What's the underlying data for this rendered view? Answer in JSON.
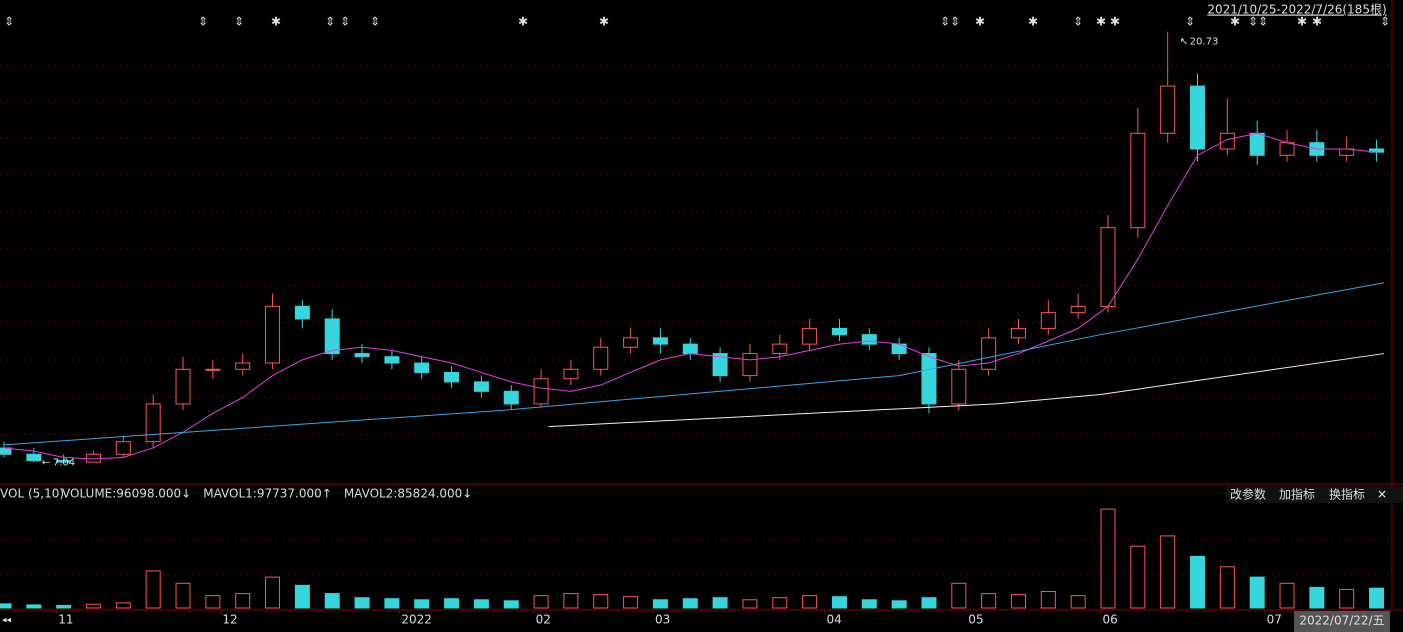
{
  "chart_data": {
    "type": "candlestick",
    "title": "2021/10/25-2022/7/26(185根)",
    "xlim": [
      0,
      185
    ],
    "x": [
      0,
      4,
      8,
      12,
      16,
      20,
      24,
      28,
      32,
      36,
      40,
      44,
      48,
      52,
      56,
      60,
      64,
      68,
      72,
      76,
      80,
      84,
      88,
      92,
      96,
      100,
      104,
      108,
      112,
      116,
      120,
      124,
      128,
      132,
      136,
      140,
      144,
      148,
      152,
      156,
      160,
      164,
      168,
      172,
      176,
      180,
      184
    ],
    "open": [
      7.5,
      7.3,
      7.1,
      7.05,
      7.3,
      7.7,
      8.9,
      10.0,
      10.0,
      10.2,
      12.0,
      11.6,
      10.5,
      10.4,
      10.2,
      9.9,
      9.6,
      9.3,
      8.9,
      9.7,
      10.0,
      10.7,
      11.0,
      10.8,
      10.5,
      9.8,
      10.5,
      10.8,
      11.3,
      11.1,
      10.8,
      10.5,
      8.9,
      10.0,
      11.0,
      11.3,
      11.8,
      12.0,
      14.5,
      17.5,
      19.0,
      17.0,
      17.5,
      16.8,
      17.2,
      16.8,
      17.0
    ],
    "high": [
      7.7,
      7.5,
      7.3,
      7.4,
      7.9,
      9.2,
      10.4,
      10.3,
      10.5,
      12.4,
      12.2,
      11.9,
      10.8,
      10.6,
      10.4,
      10.1,
      9.8,
      9.5,
      10.0,
      10.3,
      11.0,
      11.3,
      11.3,
      11.0,
      10.7,
      10.8,
      11.1,
      11.6,
      11.6,
      11.3,
      11.0,
      10.7,
      10.3,
      11.3,
      11.6,
      12.2,
      12.4,
      14.9,
      18.3,
      20.73,
      19.4,
      18.6,
      17.9,
      17.6,
      17.6,
      17.4,
      17.3
    ],
    "low": [
      7.2,
      7.04,
      7.05,
      7.05,
      7.2,
      7.5,
      8.7,
      9.7,
      9.8,
      10.0,
      11.3,
      10.3,
      10.2,
      10.0,
      9.7,
      9.4,
      9.1,
      8.7,
      8.8,
      9.5,
      9.8,
      10.5,
      10.5,
      10.3,
      9.6,
      9.6,
      10.3,
      10.6,
      10.9,
      10.6,
      10.3,
      8.6,
      8.7,
      9.8,
      10.8,
      11.1,
      11.6,
      11.8,
      14.2,
      17.2,
      16.6,
      16.8,
      16.5,
      16.6,
      16.6,
      16.6,
      16.6
    ],
    "close": [
      7.3,
      7.1,
      7.05,
      7.3,
      7.7,
      8.9,
      10.0,
      10.0,
      10.2,
      12.0,
      11.6,
      10.5,
      10.4,
      10.2,
      9.9,
      9.6,
      9.3,
      8.9,
      9.7,
      10.0,
      10.7,
      11.0,
      10.8,
      10.5,
      9.8,
      10.5,
      10.8,
      11.3,
      11.1,
      10.8,
      10.5,
      8.9,
      10.0,
      11.0,
      11.3,
      11.8,
      12.0,
      14.5,
      17.5,
      19.0,
      17.0,
      17.5,
      16.8,
      17.2,
      16.8,
      17.0,
      16.9
    ],
    "ylim": [
      6.8,
      21.1
    ],
    "up_color": "#ff5555",
    "down_color": "#35d6dc",
    "ma_lines": [
      {
        "color": "#e040e0",
        "values": [
          7.5,
          7.4,
          7.2,
          7.15,
          7.2,
          7.5,
          8.0,
          8.6,
          9.1,
          9.8,
          10.3,
          10.6,
          10.7,
          10.6,
          10.4,
          10.2,
          9.9,
          9.6,
          9.4,
          9.3,
          9.5,
          9.9,
          10.3,
          10.5,
          10.4,
          10.3,
          10.4,
          10.6,
          10.8,
          10.9,
          10.8,
          10.4,
          10.1,
          10.2,
          10.5,
          10.9,
          11.3,
          12.0,
          13.5,
          15.2,
          16.8,
          17.3,
          17.5,
          17.2,
          17.0,
          17.0,
          16.9
        ]
      },
      {
        "color": "#3aa6e8",
        "x": [
          0,
          67,
          120,
          147,
          185
        ],
        "values": [
          7.6,
          8.7,
          9.8,
          11.1,
          12.75
        ]
      },
      {
        "color": "#f0f0f0",
        "x": [
          73,
          133,
          147,
          185
        ],
        "values": [
          8.18,
          8.9,
          9.2,
          10.5
        ]
      }
    ],
    "xticks": [
      {
        "value": 7,
        "label": "11"
      },
      {
        "value": 29,
        "label": "12"
      },
      {
        "value": 53,
        "label": "2022"
      },
      {
        "value": 71,
        "label": "02"
      },
      {
        "value": 87,
        "label": "03"
      },
      {
        "value": 110,
        "label": "04"
      },
      {
        "value": 129,
        "label": "05"
      },
      {
        "value": 147,
        "label": "06"
      },
      {
        "value": 169,
        "label": "07"
      }
    ],
    "date_label": "2022/07/22/五",
    "volume": {
      "name": "VOL (5,10)",
      "legend": [
        {
          "text": "VOLUME:96098.000↓",
          "color": "#ffffff"
        },
        {
          "text": "MAVOL1:97737.000↑",
          "color": "#ffff55"
        },
        {
          "text": "MAVOL2:85824.000↓",
          "color": "#ff44ff"
        }
      ],
      "values": [
        20000,
        15000,
        12000,
        18000,
        25000,
        180000,
        120000,
        60000,
        70000,
        150000,
        110000,
        70000,
        50000,
        45000,
        40000,
        45000,
        40000,
        35000,
        60000,
        70000,
        65000,
        55000,
        40000,
        45000,
        50000,
        40000,
        50000,
        60000,
        55000,
        40000,
        35000,
        50000,
        120000,
        70000,
        65000,
        80000,
        60000,
        480000,
        300000,
        350000,
        250000,
        200000,
        150000,
        120000,
        100000,
        90000,
        96098
      ],
      "ylim": [
        0,
        500000
      ]
    },
    "buttons": [
      "改参数",
      "加指标",
      "换指标"
    ]
  }
}
